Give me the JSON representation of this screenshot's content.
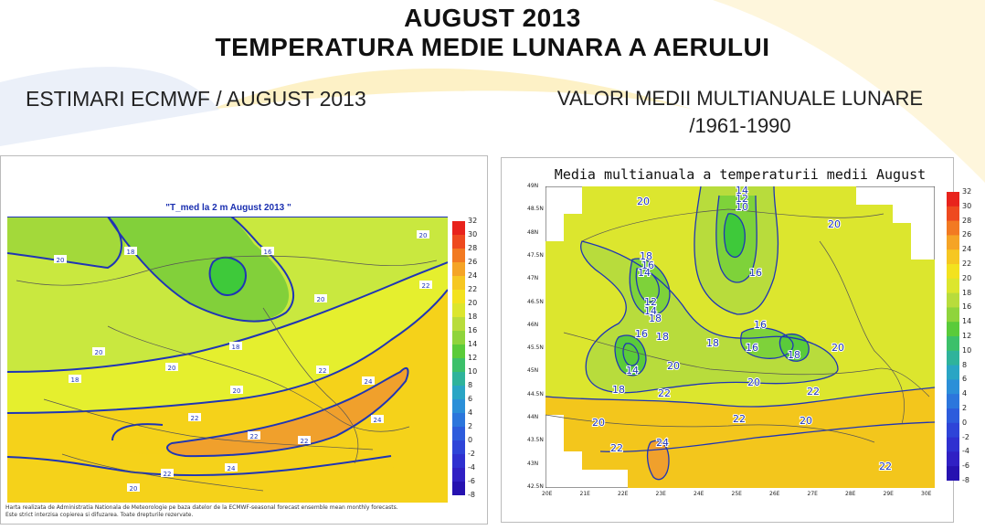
{
  "title": {
    "line1": "AUGUST 2013",
    "line2": "TEMPERATURA MEDIE LUNARA A AERULUI"
  },
  "subtitle_left": "ESTIMARI ECMWF / AUGUST 2013",
  "subtitle_right": {
    "line1": "VALORI MEDII MULTIANUALE LUNARE",
    "line2": "/1961-1990"
  },
  "map_left": {
    "title": "\"T_med la 2 m August 2013 \"",
    "footnote1": "Harta realizata de Administratia Nationala de Meteorologie pe baza datelor de la ECMWF-seasonal forecast ensemble mean monthly forecasts.",
    "footnote2": "Este strict interzisa copierea si difuzarea. Toate drepturile rezervate.",
    "colorbar_ticks": [
      "32",
      "30",
      "28",
      "26",
      "24",
      "22",
      "20",
      "18",
      "16",
      "14",
      "12",
      "10",
      "8",
      "6",
      "4",
      "2",
      "0",
      "-2",
      "-4",
      "-6",
      "-8"
    ],
    "contour_labels": [
      "20",
      "18",
      "16",
      "20",
      "22",
      "20",
      "18",
      "20",
      "22",
      "18",
      "20",
      "20",
      "22",
      "24",
      "24",
      "22",
      "24",
      "20",
      "22",
      "22"
    ]
  },
  "map_right": {
    "title": "Media multianuala a temperaturii medii August",
    "colorbar_ticks": [
      "32",
      "30",
      "28",
      "26",
      "24",
      "22",
      "20",
      "18",
      "16",
      "14",
      "12",
      "10",
      "8",
      "6",
      "4",
      "2",
      "0",
      "-2",
      "-4",
      "-6",
      "-8"
    ],
    "lat_labels": [
      "49N",
      "48.5N",
      "48N",
      "47.5N",
      "47N",
      "46.5N",
      "46N",
      "45.5N",
      "45N",
      "44.5N",
      "44N",
      "43.5N",
      "43N",
      "42.5N"
    ],
    "lon_labels": [
      "20E",
      "21E",
      "22E",
      "23E",
      "24E",
      "25E",
      "26E",
      "27E",
      "28E",
      "29E",
      "30E"
    ],
    "contour_labels": [
      "20",
      "14",
      "12",
      "10",
      "20",
      "18",
      "16",
      "14",
      "16",
      "12",
      "14",
      "18",
      "16",
      "18",
      "16",
      "18",
      "16",
      "18",
      "14",
      "20",
      "20",
      "20",
      "18",
      "20",
      "22",
      "22",
      "20",
      "22",
      "24",
      "22",
      "22"
    ]
  },
  "colors": {
    "accent_deco": "#fde9a8",
    "contour": "#1f35b5"
  }
}
